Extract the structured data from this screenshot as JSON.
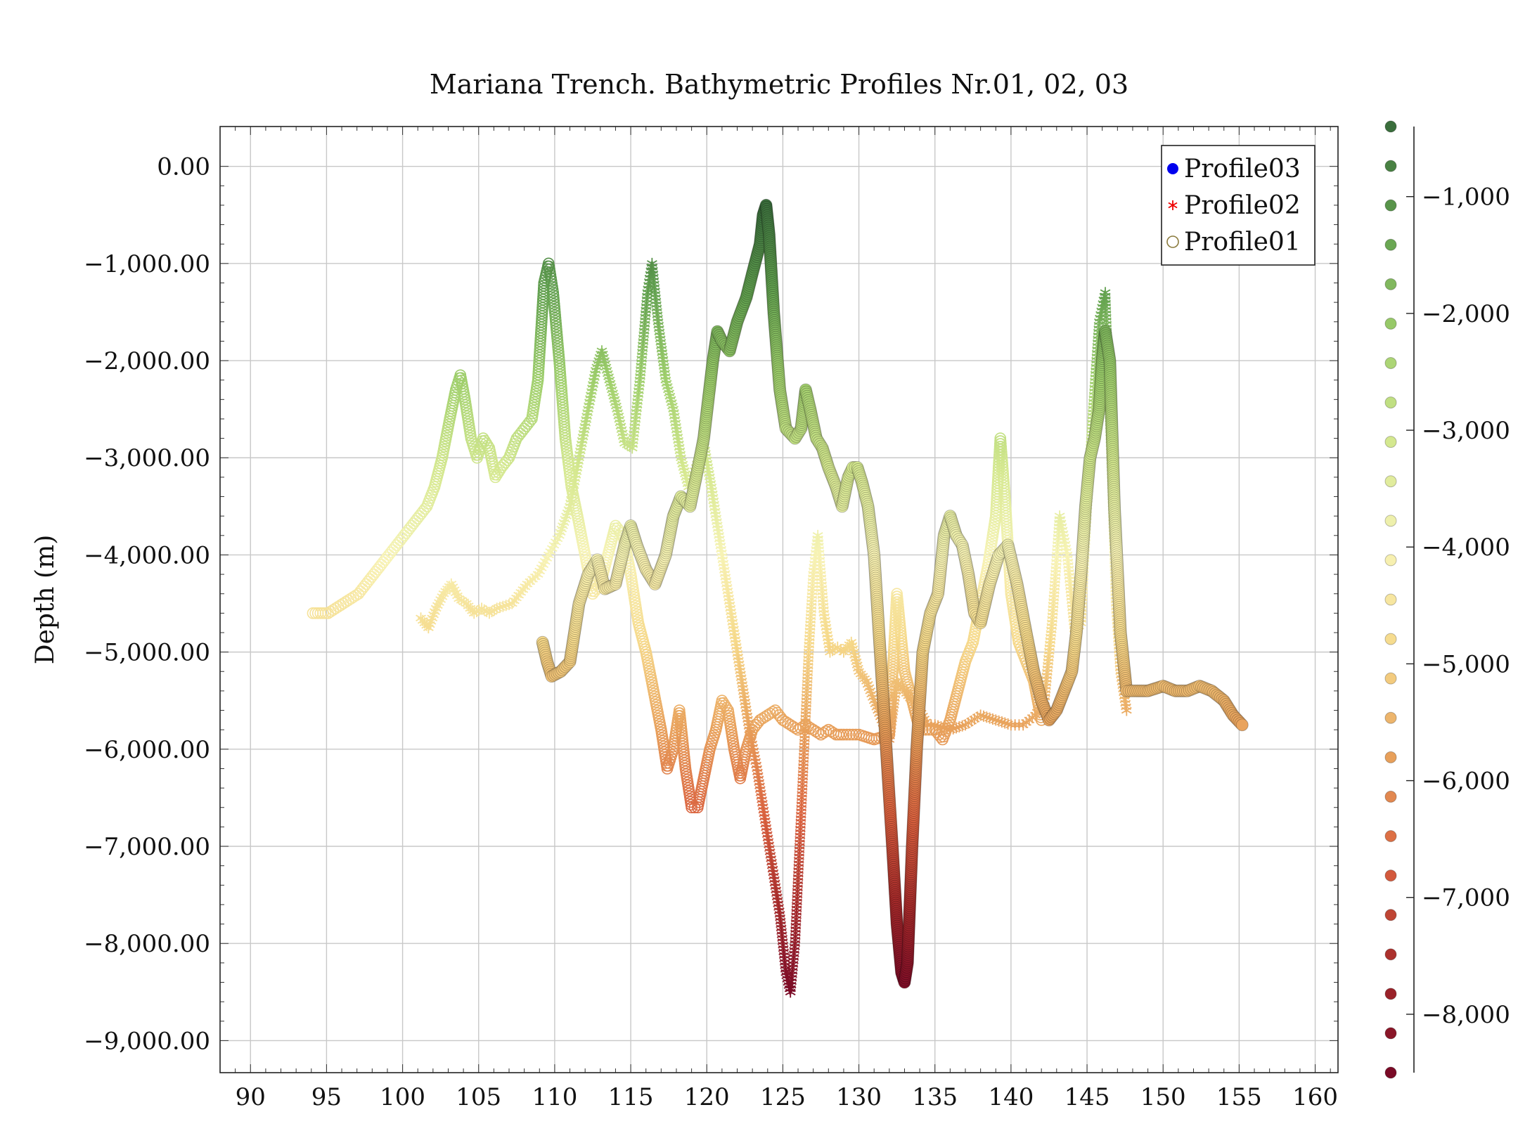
{
  "chart_data": {
    "type": "scatter",
    "title": "Mariana Trench. Bathymetric Profiles Nr.01, 02, 03",
    "xlabel": "",
    "ylabel": "Depth (m)",
    "xlim": [
      88,
      161.5
    ],
    "ylim": [
      -9330,
      410
    ],
    "x_ticks": [
      90,
      95,
      100,
      105,
      110,
      115,
      120,
      125,
      130,
      135,
      140,
      145,
      150,
      155,
      160
    ],
    "x_tick_labels": [
      "90",
      "95",
      "100",
      "105",
      "110",
      "115",
      "120",
      "125",
      "130",
      "135",
      "140",
      "145",
      "150",
      "155",
      "160"
    ],
    "y_ticks": [
      0,
      -1000,
      -2000,
      -3000,
      -4000,
      -5000,
      -6000,
      -7000,
      -8000,
      -9000
    ],
    "y_tick_labels": [
      "0.00",
      "−1,000.00",
      "−2,000.00",
      "−3,000.00",
      "−4,000.00",
      "−5,000.00",
      "−6,000.00",
      "−7,000.00",
      "−8,000.00",
      "−9,000.00"
    ],
    "grid": true,
    "legend_position": "top-right",
    "legend": [
      {
        "name": "Profile03",
        "marker": "filled-circle",
        "color": "#0000ee"
      },
      {
        "name": "Profile02",
        "marker": "asterisk",
        "color": "#ee0000"
      },
      {
        "name": "Profile01",
        "marker": "open-circle",
        "color": "#8a7a3c"
      }
    ],
    "colorbar": {
      "range": [
        -8500,
        -400
      ],
      "ticks": [
        -1000,
        -2000,
        -3000,
        -4000,
        -5000,
        -6000,
        -7000,
        -8000
      ],
      "tick_labels": [
        "−1,000",
        "−2,000",
        "−3,000",
        "−4,000",
        "−5,000",
        "−6,000",
        "−7,000",
        "−8,000"
      ],
      "colormap": [
        "#7a0a26",
        "#a52a2a",
        "#d9603e",
        "#e8a05a",
        "#f6d98a",
        "#f7f3b5",
        "#d4e88f",
        "#9fcf6c",
        "#62a14f",
        "#3a6e3c"
      ]
    },
    "series": [
      {
        "name": "Profile03",
        "marker": "filled-circle",
        "x": [
          109.2,
          109.5,
          109.8,
          110.4,
          111.0,
          111.3,
          111.6,
          112.2,
          112.8,
          113.3,
          114.0,
          114.6,
          115.0,
          115.4,
          116.0,
          116.6,
          117.3,
          117.8,
          118.3,
          118.9,
          119.3,
          119.8,
          120.1,
          120.4,
          120.7,
          121.0,
          121.5,
          122.0,
          122.6,
          123.0,
          123.5,
          123.7,
          123.9,
          124.1,
          124.4,
          124.8,
          125.2,
          125.8,
          126.2,
          126.5,
          126.8,
          127.2,
          127.6,
          128.0,
          128.5,
          128.9,
          129.3,
          129.6,
          129.9,
          130.2,
          130.6,
          131.0,
          131.4,
          131.8,
          132.2,
          132.5,
          132.8,
          133.0,
          133.2,
          133.5,
          133.8,
          134.2,
          134.7,
          135.2,
          135.6,
          136.0,
          136.4,
          136.8,
          137.2,
          137.6,
          138.0,
          138.6,
          139.2,
          139.8,
          140.4,
          141.0,
          141.5,
          142.0,
          142.5,
          143.0,
          143.5,
          144.0,
          144.3,
          144.6,
          144.9,
          145.2,
          145.5,
          145.8,
          146.0,
          146.2,
          146.5,
          146.8,
          147.2,
          147.6,
          148.2,
          149.0,
          150.0,
          150.8,
          151.6,
          152.4,
          153.2,
          154.0,
          154.6,
          155.2
        ],
        "y": [
          -4900,
          -5100,
          -5250,
          -5200,
          -5100,
          -4800,
          -4500,
          -4200,
          -4050,
          -4350,
          -4300,
          -3900,
          -3700,
          -3900,
          -4150,
          -4300,
          -4000,
          -3600,
          -3400,
          -3500,
          -3200,
          -2800,
          -2400,
          -2000,
          -1700,
          -1800,
          -1900,
          -1600,
          -1350,
          -1100,
          -800,
          -500,
          -400,
          -700,
          -1500,
          -2300,
          -2700,
          -2800,
          -2700,
          -2300,
          -2500,
          -2800,
          -2900,
          -3100,
          -3300,
          -3500,
          -3200,
          -3100,
          -3100,
          -3250,
          -3500,
          -4000,
          -5000,
          -6000,
          -7000,
          -7800,
          -8300,
          -8400,
          -8200,
          -7000,
          -6000,
          -5000,
          -4600,
          -4400,
          -3800,
          -3600,
          -3800,
          -3900,
          -4200,
          -4600,
          -4700,
          -4300,
          -4000,
          -3900,
          -4300,
          -4800,
          -5200,
          -5500,
          -5700,
          -5600,
          -5400,
          -5200,
          -4800,
          -4200,
          -3500,
          -3000,
          -2800,
          -2500,
          -2000,
          -1700,
          -2000,
          -3500,
          -4800,
          -5400,
          -5400,
          -5400,
          -5350,
          -5400,
          -5400,
          -5350,
          -5400,
          -5500,
          -5650,
          -5750
        ]
      },
      {
        "name": "Profile02",
        "marker": "asterisk",
        "x": [
          101.2,
          101.7,
          102.2,
          102.7,
          103.2,
          103.7,
          104.2,
          104.7,
          105.2,
          105.7,
          106.2,
          107.2,
          108.2,
          108.9,
          109.6,
          110.3,
          111.0,
          111.6,
          112.2,
          112.7,
          113.1,
          113.6,
          114.1,
          114.6,
          115.1,
          115.6,
          116.1,
          116.4,
          116.8,
          117.3,
          117.8,
          118.3,
          118.8,
          119.3,
          119.8,
          120.3,
          120.8,
          121.3,
          121.8,
          122.3,
          122.8,
          123.3,
          123.8,
          124.3,
          124.8,
          125.2,
          125.5,
          125.8,
          126.1,
          126.4,
          126.7,
          127.0,
          127.3,
          127.7,
          128.1,
          128.6,
          129.0,
          129.5,
          130.0,
          130.5,
          131.0,
          131.5,
          132.0,
          132.5,
          133.0,
          133.5,
          134.0,
          134.5,
          135.0,
          136.0,
          137.0,
          138.0,
          139.0,
          140.0,
          140.8,
          141.6,
          142.2,
          142.7,
          143.2,
          143.7,
          144.2,
          144.6,
          145.0,
          145.4,
          145.8,
          146.2,
          146.6,
          146.9,
          147.2,
          147.6
        ],
        "y": [
          -4650,
          -4750,
          -4550,
          -4400,
          -4300,
          -4450,
          -4500,
          -4600,
          -4550,
          -4600,
          -4550,
          -4500,
          -4300,
          -4200,
          -4000,
          -3800,
          -3500,
          -3000,
          -2500,
          -2100,
          -1900,
          -2200,
          -2500,
          -2850,
          -2900,
          -2200,
          -1300,
          -1000,
          -1600,
          -2200,
          -2500,
          -3000,
          -3300,
          -3100,
          -2850,
          -3300,
          -3800,
          -4300,
          -4800,
          -5300,
          -5800,
          -6200,
          -6700,
          -7200,
          -7700,
          -8300,
          -8500,
          -8000,
          -7000,
          -6000,
          -5000,
          -4200,
          -3800,
          -4600,
          -5000,
          -4950,
          -5000,
          -4900,
          -5200,
          -5300,
          -5500,
          -5700,
          -5900,
          -5300,
          -5400,
          -5500,
          -5600,
          -5750,
          -5750,
          -5800,
          -5750,
          -5650,
          -5700,
          -5750,
          -5750,
          -5650,
          -5500,
          -4700,
          -3600,
          -4000,
          -4800,
          -4700,
          -3500,
          -2500,
          -1600,
          -1300,
          -3000,
          -4500,
          -5200,
          -5600
        ],
        "color": "#c2a35d"
      },
      {
        "name": "Profile01",
        "marker": "open-circle",
        "x": [
          94.1,
          94.6,
          95.1,
          95.6,
          96.1,
          96.6,
          97.1,
          97.6,
          98.1,
          98.6,
          99.1,
          99.6,
          100.1,
          100.6,
          101.1,
          101.6,
          102.1,
          102.6,
          103.1,
          103.5,
          103.8,
          104.1,
          104.5,
          104.9,
          105.3,
          105.7,
          106.1,
          106.5,
          107.0,
          107.5,
          108.0,
          108.5,
          108.9,
          109.3,
          109.6,
          109.9,
          110.3,
          110.7,
          111.1,
          111.5,
          112.0,
          112.5,
          113.0,
          113.5,
          114.0,
          114.5,
          115.0,
          115.5,
          116.0,
          116.5,
          117.0,
          117.4,
          117.8,
          118.2,
          118.6,
          119.0,
          119.4,
          119.8,
          120.2,
          120.6,
          121.0,
          121.4,
          121.8,
          122.2,
          122.6,
          123.0,
          123.5,
          124.0,
          124.5,
          125.0,
          125.5,
          126.0,
          126.5,
          127.0,
          127.5,
          128.0,
          128.5,
          129.0,
          130.0,
          131.0,
          132.0,
          132.5,
          133.0,
          133.5,
          134.0,
          135.0,
          135.5,
          136.0,
          136.5,
          137.0,
          137.5,
          138.0,
          138.5,
          139.0,
          139.3,
          139.6,
          140.0,
          140.5,
          141.0,
          141.5,
          142.0
        ],
        "y": [
          -4600,
          -4600,
          -4600,
          -4550,
          -4500,
          -4450,
          -4400,
          -4300,
          -4200,
          -4100,
          -4000,
          -3900,
          -3800,
          -3700,
          -3600,
          -3500,
          -3300,
          -3000,
          -2600,
          -2300,
          -2150,
          -2400,
          -2800,
          -3000,
          -2800,
          -2900,
          -3200,
          -3100,
          -3000,
          -2800,
          -2700,
          -2600,
          -2200,
          -1200,
          -1000,
          -1300,
          -2000,
          -2800,
          -3300,
          -3600,
          -4000,
          -4400,
          -4300,
          -4000,
          -3700,
          -3800,
          -4200,
          -4700,
          -5000,
          -5400,
          -5800,
          -6200,
          -6000,
          -5600,
          -6200,
          -6600,
          -6600,
          -6300,
          -6000,
          -5800,
          -5500,
          -5600,
          -6000,
          -6300,
          -6000,
          -5800,
          -5700,
          -5650,
          -5600,
          -5700,
          -5750,
          -5800,
          -5750,
          -5800,
          -5850,
          -5800,
          -5850,
          -5850,
          -5850,
          -5900,
          -5850,
          -4400,
          -5200,
          -5500,
          -5800,
          -5800,
          -5900,
          -5700,
          -5400,
          -5100,
          -4900,
          -4500,
          -4100,
          -3600,
          -2800,
          -3400,
          -4400,
          -4900,
          -5100,
          -5300,
          -5700
        ]
      }
    ]
  }
}
